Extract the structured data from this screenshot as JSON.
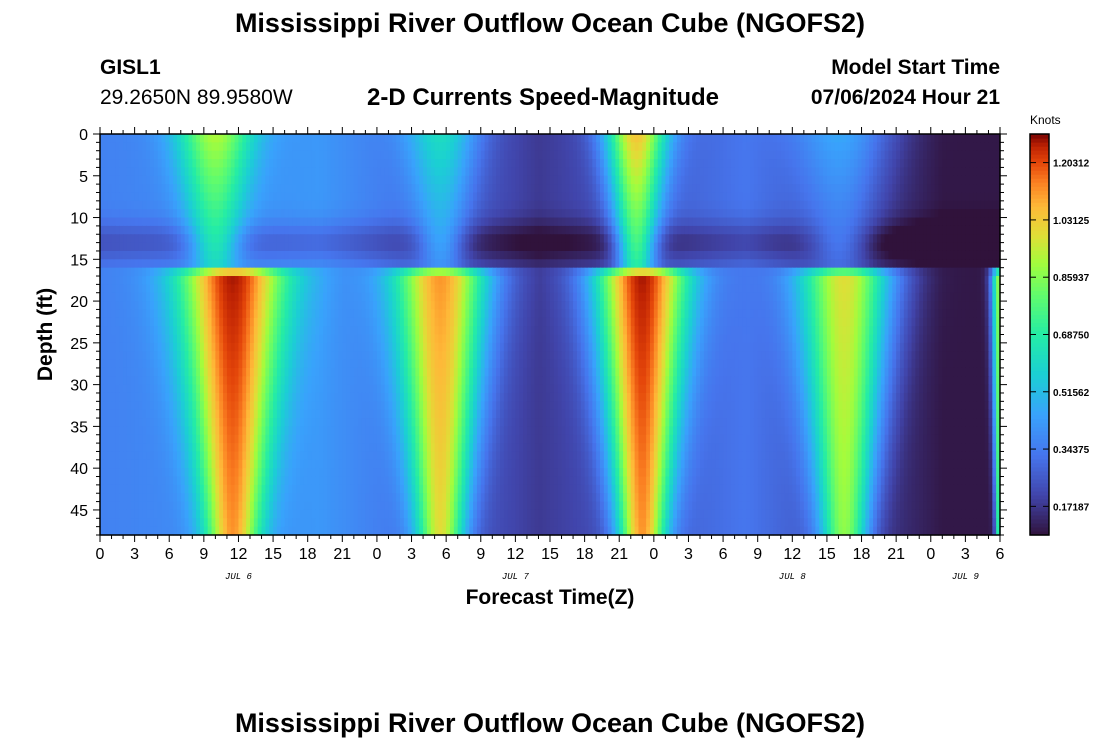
{
  "header": {
    "title": "Mississippi River Outflow Ocean Cube (NGOFS2)",
    "station": "GISL1",
    "coords": "29.2650N  89.9580W",
    "subtitle": "2-D Currents Speed-Magnitude",
    "model_start_label": "Model Start Time",
    "model_start_value": "07/06/2024 Hour 21"
  },
  "footer": {
    "title": "Mississippi River Outflow Ocean Cube (NGOFS2)"
  },
  "chart_data": {
    "type": "heatmap",
    "title": "2-D Currents Speed-Magnitude",
    "xlabel": "Forecast Time(Z)",
    "ylabel": "Depth (ft)",
    "xlim": [
      0,
      78
    ],
    "ylim": [
      0,
      48
    ],
    "x_ticks": [
      0,
      3,
      6,
      9,
      12,
      15,
      18,
      21,
      24,
      27,
      30,
      33,
      36,
      39,
      42,
      45,
      48,
      51,
      54,
      57,
      60,
      63,
      66,
      69,
      72,
      75,
      78
    ],
    "x_tick_labels": [
      "0",
      "3",
      "6",
      "9",
      "12",
      "15",
      "18",
      "21",
      "0",
      "3",
      "6",
      "9",
      "12",
      "15",
      "18",
      "21",
      "0",
      "3",
      "6",
      "9",
      "12",
      "15",
      "18",
      "21",
      "0",
      "3",
      "6"
    ],
    "date_labels": [
      {
        "hour": 12,
        "label": "JUL 6"
      },
      {
        "hour": 36,
        "label": "JUL 7"
      },
      {
        "hour": 60,
        "label": "JUL 8"
      },
      {
        "hour": 75,
        "label": "JUL 9"
      }
    ],
    "y_ticks": [
      0,
      5,
      10,
      15,
      20,
      25,
      30,
      35,
      40,
      45
    ],
    "y_tick_labels": [
      "0",
      "5",
      "10",
      "15",
      "20",
      "25",
      "30",
      "35",
      "40",
      "45"
    ],
    "colorbar": {
      "unit": "Knots",
      "min": 0.0859,
      "max": 1.289,
      "ticks": [
        0.17187,
        0.34375,
        0.51562,
        0.6875,
        0.85937,
        1.03125,
        1.20312
      ],
      "tick_labels": [
        "0.17187",
        "0.34375",
        "0.51562",
        "0.68750",
        "0.85937",
        "1.03125",
        "1.20312"
      ]
    },
    "bands": {
      "surface_depth_range_ft": [
        0,
        16
      ],
      "lower_depth_range_ft": [
        16,
        48
      ],
      "surface_speed_peaks": [
        {
          "hour": 10,
          "peak": 0.92,
          "width_h": 3.2
        },
        {
          "hour": 29.5,
          "peak": 0.62,
          "width_h": 3.0
        },
        {
          "hour": 46.5,
          "peak": 1.05,
          "width_h": 2.6
        },
        {
          "hour": 64,
          "peak": 0.46,
          "width_h": 4.0
        }
      ],
      "lower_speed_peaks": [
        {
          "hour": 11.5,
          "peak": 1.27,
          "width_h": 4.3
        },
        {
          "hour": 29.5,
          "peak": 1.12,
          "width_h": 3.8
        },
        {
          "hour": 47,
          "peak": 1.27,
          "width_h": 3.8
        },
        {
          "hour": 64.5,
          "peak": 0.99,
          "width_h": 3.8
        },
        {
          "hour": 78,
          "peak": 0.9,
          "width_h": 0.7
        }
      ],
      "slack_speed": [
        {
          "hour": 0,
          "value": 0.36
        },
        {
          "hour": 19,
          "value": 0.42
        },
        {
          "hour": 38,
          "value": 0.18
        },
        {
          "hour": 56,
          "value": 0.33
        },
        {
          "hour": 73,
          "value": 0.1
        }
      ]
    }
  }
}
